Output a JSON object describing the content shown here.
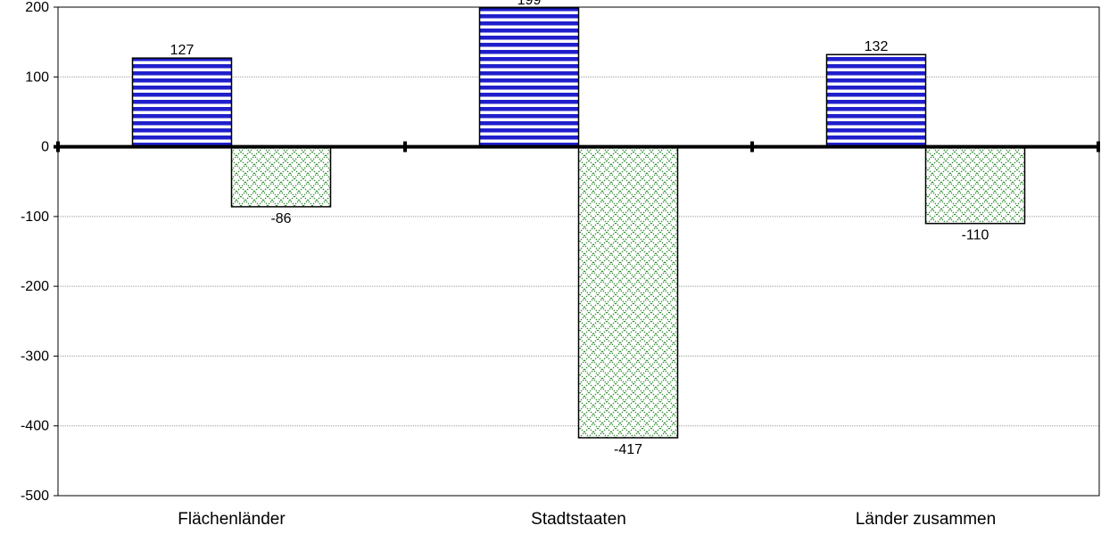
{
  "chart_data": {
    "type": "bar",
    "categories": [
      "Flächenländer",
      "Stadtstaaten",
      "Länder zusammen"
    ],
    "series": [
      {
        "values": [
          127,
          199,
          132
        ],
        "color": "#1f1fcc",
        "pattern": "horizontal-stripes"
      },
      {
        "values": [
          -86,
          -417,
          -110
        ],
        "color": "#2e8b2e",
        "pattern": "crosshatch"
      }
    ],
    "title": "",
    "xlabel": "",
    "ylabel": "",
    "ylim": [
      -500,
      200
    ],
    "yticks": [
      200,
      100,
      0,
      -100,
      -200,
      -300,
      -400,
      -500
    ],
    "grid": true,
    "legend": "none"
  }
}
